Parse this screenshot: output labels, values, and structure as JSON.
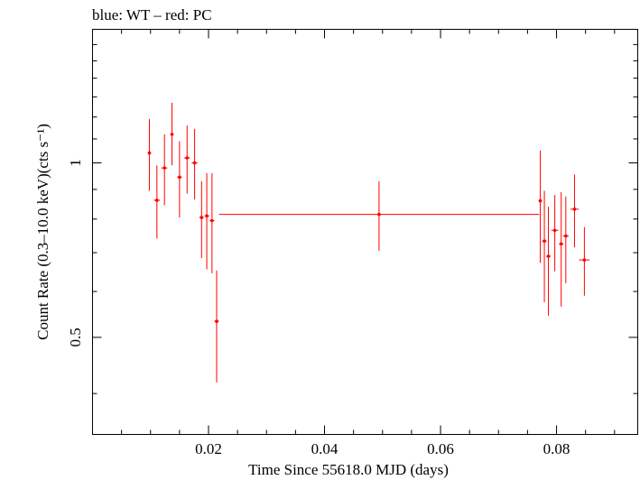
{
  "chart_data": {
    "type": "scatter",
    "title": "blue: WT – red: PC",
    "xlabel": "Time Since 55618.0 MJD (days)",
    "ylabel": "Count Rate (0.3–10.0 keV)(cts s⁻¹)",
    "xlim": [
      0.0,
      0.094
    ],
    "ylim": [
      0.34,
      1.7
    ],
    "yscale": "log",
    "grid": false,
    "colors": {
      "PC": "#ff0000",
      "WT": "#0000ff"
    },
    "x_ticks": [
      {
        "value": 0.02,
        "label": "0.02"
      },
      {
        "value": 0.04,
        "label": "0.04"
      },
      {
        "value": 0.06,
        "label": "0.06"
      },
      {
        "value": 0.08,
        "label": "0.08"
      }
    ],
    "y_ticks": [
      {
        "value": 0.5,
        "label": "0.5"
      },
      {
        "value": 1.0,
        "label": "1"
      }
    ],
    "series": [
      {
        "name": "PC",
        "points": [
          {
            "x": 0.0098,
            "xerr": 0.0003,
            "y": 1.04,
            "ylo": 0.895,
            "yhi": 1.19
          },
          {
            "x": 0.0111,
            "xerr": 0.0005,
            "y": 0.862,
            "ylo": 0.74,
            "yhi": 0.99
          },
          {
            "x": 0.0124,
            "xerr": 0.0005,
            "y": 0.98,
            "ylo": 0.845,
            "yhi": 1.12
          },
          {
            "x": 0.0137,
            "xerr": 0.0003,
            "y": 1.12,
            "ylo": 0.99,
            "yhi": 1.27
          },
          {
            "x": 0.015,
            "xerr": 0.0004,
            "y": 0.945,
            "ylo": 0.805,
            "yhi": 1.09
          },
          {
            "x": 0.0163,
            "xerr": 0.0005,
            "y": 1.02,
            "ylo": 0.885,
            "yhi": 1.16
          },
          {
            "x": 0.0176,
            "xerr": 0.0005,
            "y": 1.0,
            "ylo": 0.865,
            "yhi": 1.145
          },
          {
            "x": 0.0188,
            "xerr": 0.0004,
            "y": 0.805,
            "ylo": 0.685,
            "yhi": 0.93
          },
          {
            "x": 0.0197,
            "xerr": 0.0004,
            "y": 0.81,
            "ylo": 0.655,
            "yhi": 0.96
          },
          {
            "x": 0.0206,
            "xerr": 0.0004,
            "y": 0.795,
            "ylo": 0.645,
            "yhi": 0.96
          },
          {
            "x": 0.0214,
            "xerr": 0.0004,
            "y": 0.533,
            "ylo": 0.418,
            "yhi": 0.652
          },
          {
            "x": 0.0494,
            "xerr": 0.0276,
            "y": 0.815,
            "ylo": 0.705,
            "yhi": 0.93
          },
          {
            "x": 0.0772,
            "xerr": 0.0003,
            "y": 0.86,
            "ylo": 0.672,
            "yhi": 1.05
          },
          {
            "x": 0.0779,
            "xerr": 0.0004,
            "y": 0.733,
            "ylo": 0.575,
            "yhi": 0.895
          },
          {
            "x": 0.0786,
            "xerr": 0.0004,
            "y": 0.69,
            "ylo": 0.545,
            "yhi": 0.84
          },
          {
            "x": 0.0797,
            "xerr": 0.0006,
            "y": 0.765,
            "ylo": 0.65,
            "yhi": 0.88
          },
          {
            "x": 0.0808,
            "xerr": 0.0004,
            "y": 0.725,
            "ylo": 0.565,
            "yhi": 0.89
          },
          {
            "x": 0.0816,
            "xerr": 0.0005,
            "y": 0.748,
            "ylo": 0.62,
            "yhi": 0.875
          },
          {
            "x": 0.0831,
            "xerr": 0.0007,
            "y": 0.832,
            "ylo": 0.715,
            "yhi": 0.955
          },
          {
            "x": 0.0848,
            "xerr": 0.0009,
            "y": 0.68,
            "ylo": 0.59,
            "yhi": 0.775
          }
        ]
      }
    ]
  }
}
